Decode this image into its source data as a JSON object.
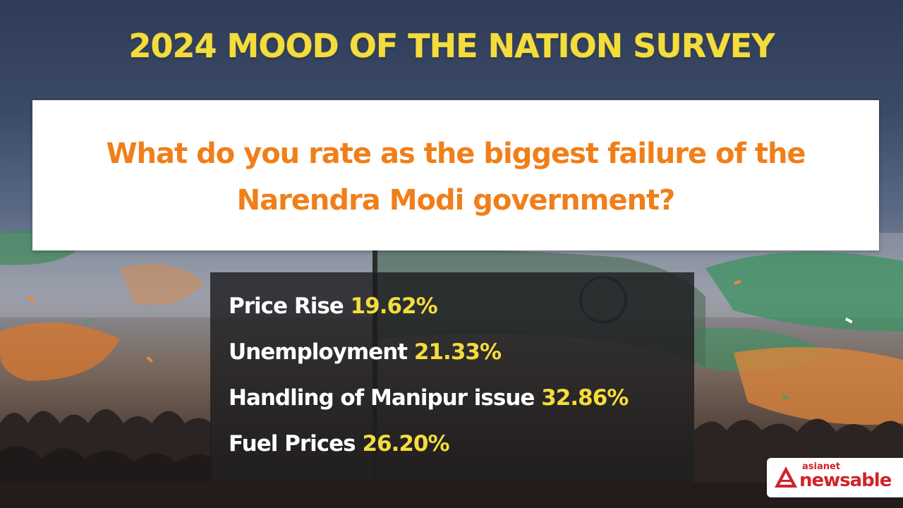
{
  "title": "2024 MOOD OF THE NATION SURVEY",
  "question": "What do you rate as the biggest failure of the Narendra Modi government?",
  "results": [
    {
      "label": "Price Rise",
      "value": "19.62%"
    },
    {
      "label": "Unemployment",
      "value": "21.33%"
    },
    {
      "label": "Handling of Manipur issue",
      "value": "32.86%"
    },
    {
      "label": "Fuel Prices",
      "value": "26.20%"
    }
  ],
  "logo": {
    "top_text": "asianet",
    "main_text": "newsable"
  },
  "colors": {
    "title": "#f4dc3d",
    "question": "#f07f1a",
    "value_highlight": "#f4dc3d",
    "brand": "#d1232a"
  }
}
